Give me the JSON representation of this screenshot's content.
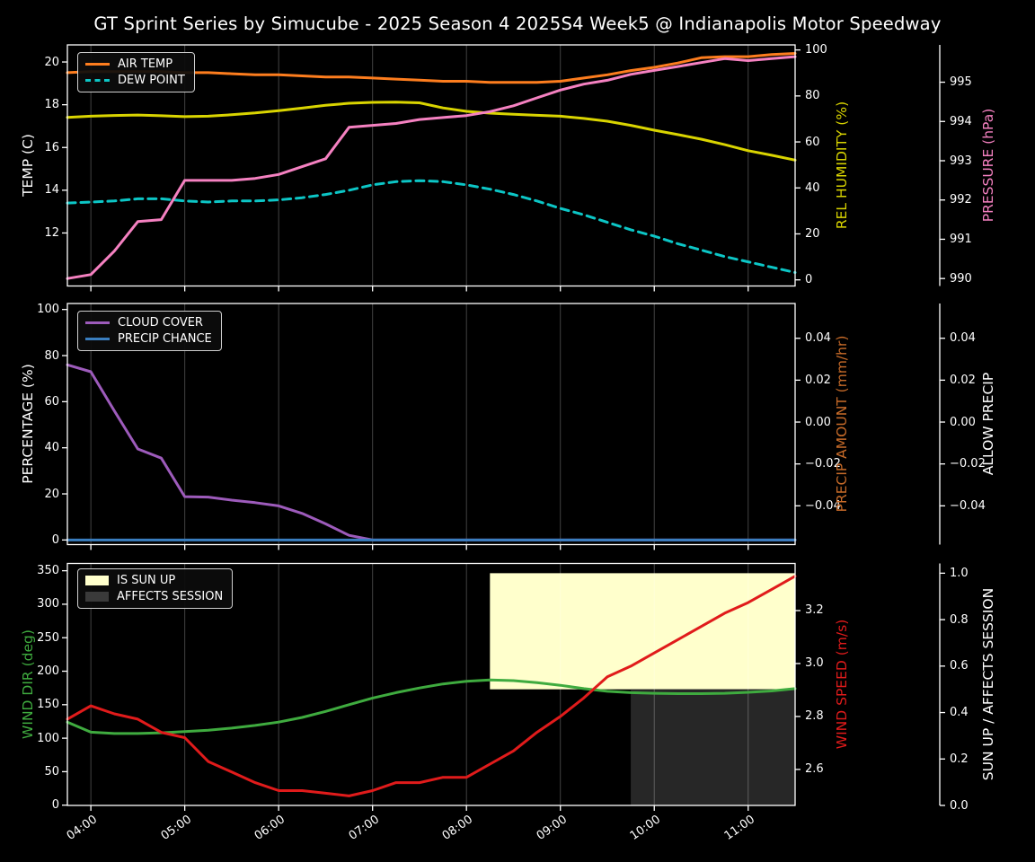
{
  "title": "GT Sprint Series by Simucube - 2025 Season 4 2025S4 Week5 @ Indianapolis Motor Speedway",
  "x_axis": {
    "start_hour": 3.75,
    "end_hour": 11.5,
    "tick_hours": [
      4,
      5,
      6,
      7,
      8,
      9,
      10,
      11
    ],
    "tick_labels": [
      "04:00",
      "05:00",
      "06:00",
      "07:00",
      "08:00",
      "09:00",
      "10:00",
      "11:00"
    ]
  },
  "chart_data": [
    {
      "type": "line",
      "panel": "temperature",
      "x_hours": [
        3.75,
        4.0,
        4.25,
        4.5,
        4.75,
        5.0,
        5.25,
        5.5,
        5.75,
        6.0,
        6.25,
        6.5,
        6.75,
        7.0,
        7.25,
        7.5,
        7.75,
        8.0,
        8.25,
        8.5,
        8.75,
        9.0,
        9.25,
        9.5,
        9.75,
        10.0,
        10.25,
        10.5,
        10.75,
        11.0,
        11.25,
        11.5
      ],
      "axes": {
        "left": {
          "label": "TEMP (C)",
          "color": "#ffffff",
          "range": [
            9.52,
            20.8
          ],
          "ticks": [
            {
              "v": 12,
              "t": "12"
            },
            {
              "v": 14,
              "t": "14"
            },
            {
              "v": 16,
              "t": "16"
            },
            {
              "v": 18,
              "t": "18"
            },
            {
              "v": 20,
              "t": "20"
            }
          ]
        },
        "right1": {
          "label": "REL HUMIDITY (%)",
          "color": "#d9d400",
          "range": [
            -2.66,
            102.2
          ],
          "ticks": [
            {
              "v": 0,
              "t": "0"
            },
            {
              "v": 20,
              "t": "20"
            },
            {
              "v": 40,
              "t": "40"
            },
            {
              "v": 60,
              "t": "60"
            },
            {
              "v": 80,
              "t": "80"
            },
            {
              "v": 100,
              "t": "100"
            }
          ]
        },
        "right2": {
          "label": "PRESSURE (hPa)",
          "color": "#f581c1",
          "range": [
            989.81,
            995.95
          ],
          "ticks": [
            {
              "v": 990,
              "t": "990"
            },
            {
              "v": 991,
              "t": "991"
            },
            {
              "v": 992,
              "t": "992"
            },
            {
              "v": 993,
              "t": "993"
            },
            {
              "v": 994,
              "t": "994"
            },
            {
              "v": 995,
              "t": "995"
            }
          ]
        }
      },
      "series": [
        {
          "name": "AIR TEMP",
          "axis": "left",
          "color": "#fd7d1e",
          "dash": false,
          "values": [
            19.5,
            19.55,
            19.55,
            19.55,
            19.55,
            19.5,
            19.5,
            19.45,
            19.4,
            19.4,
            19.35,
            19.3,
            19.3,
            19.25,
            19.2,
            19.15,
            19.1,
            19.1,
            19.05,
            19.05,
            19.05,
            19.1,
            19.25,
            19.4,
            19.6,
            19.75,
            19.95,
            20.2,
            20.25,
            20.25,
            20.35,
            20.4
          ]
        },
        {
          "name": "DEW POINT",
          "axis": "left",
          "color": "#0cc6c6",
          "dash": true,
          "values": [
            13.4,
            13.45,
            13.5,
            13.6,
            13.6,
            13.5,
            13.45,
            13.5,
            13.5,
            13.55,
            13.65,
            13.8,
            14.0,
            14.25,
            14.4,
            14.45,
            14.4,
            14.25,
            14.05,
            13.8,
            13.5,
            13.15,
            12.85,
            12.5,
            12.15,
            11.85,
            11.5,
            11.2,
            10.9,
            10.65,
            10.4,
            10.15
          ]
        },
        {
          "name": "REL HUMIDITY",
          "axis": "right1",
          "color": "#d9d400",
          "dash": false,
          "values": [
            70.7,
            71.2,
            71.5,
            71.7,
            71.4,
            71.0,
            71.2,
            71.8,
            72.6,
            73.6,
            74.7,
            75.9,
            76.8,
            77.2,
            77.3,
            77.0,
            74.8,
            73.3,
            72.5,
            72.0,
            71.6,
            71.2,
            70.2,
            69.0,
            67.2,
            65.1,
            63.2,
            61.2,
            58.8,
            56.2,
            54.2,
            52.1
          ]
        },
        {
          "name": "PRESSURE",
          "axis": "right2",
          "color": "#f581c1",
          "dash": false,
          "values": [
            990.0,
            990.1,
            990.7,
            991.45,
            991.5,
            992.5,
            992.5,
            992.5,
            992.55,
            992.65,
            992.85,
            993.05,
            993.85,
            993.9,
            993.95,
            994.05,
            994.1,
            994.15,
            994.25,
            994.4,
            994.6,
            994.8,
            994.95,
            995.05,
            995.2,
            995.3,
            995.4,
            995.5,
            995.6,
            995.55,
            995.6,
            995.65
          ]
        }
      ],
      "bands": [],
      "legend": [
        {
          "label": "AIR TEMP",
          "swatch": "line",
          "color": "#fd7d1e"
        },
        {
          "label": "DEW POINT",
          "swatch": "dash",
          "color": "#0cc6c6"
        }
      ]
    },
    {
      "type": "line",
      "panel": "percentage",
      "x_hours": [
        3.75,
        4.0,
        4.25,
        4.5,
        4.75,
        5.0,
        5.25,
        5.5,
        5.75,
        6.0,
        6.25,
        6.5,
        6.75,
        7.0,
        7.25,
        7.5,
        7.75,
        8.0,
        8.25,
        8.5,
        8.75,
        9.0,
        9.25,
        9.5,
        9.75,
        10.0,
        10.25,
        10.5,
        10.75,
        11.0,
        11.25,
        11.5
      ],
      "axes": {
        "left": {
          "label": "PERCENTAGE (%)",
          "color": "#ffffff",
          "range": [
            -2.0,
            102.6
          ],
          "ticks": [
            {
              "v": 0,
              "t": "0"
            },
            {
              "v": 20,
              "t": "20"
            },
            {
              "v": 40,
              "t": "40"
            },
            {
              "v": 60,
              "t": "60"
            },
            {
              "v": 80,
              "t": "80"
            },
            {
              "v": 100,
              "t": "100"
            }
          ]
        },
        "right1": {
          "label": "PRECIP AMOUNT (mm/hr)",
          "color": "#c76b29",
          "range": [
            -0.0585,
            0.0566
          ],
          "ticks": [
            {
              "v": 0.04,
              "t": "0.04"
            },
            {
              "v": 0.02,
              "t": "0.02"
            },
            {
              "v": 0.0,
              "t": "0.00"
            },
            {
              "v": -0.02,
              "t": "−0.02"
            },
            {
              "v": -0.04,
              "t": "−0.04"
            }
          ]
        },
        "right2": {
          "label": "ALLOW PRECIP",
          "color": "#ffffff",
          "range": [
            -0.0585,
            0.0566
          ],
          "ticks": [
            {
              "v": 0.04,
              "t": "0.04"
            },
            {
              "v": 0.02,
              "t": "0.02"
            },
            {
              "v": 0.0,
              "t": "0.00"
            },
            {
              "v": -0.02,
              "t": "−0.02"
            },
            {
              "v": -0.04,
              "t": "−0.04"
            }
          ]
        }
      },
      "series": [
        {
          "name": "CLOUD COVER",
          "axis": "left",
          "color": "#9d5bbb",
          "dash": false,
          "values": [
            76,
            73,
            56,
            39.5,
            35.5,
            18.8,
            18.6,
            17.3,
            16.2,
            14.8,
            11.5,
            7,
            2,
            0,
            0,
            0,
            0,
            0,
            0,
            0,
            0,
            0,
            0,
            0,
            0,
            0,
            0,
            0,
            0,
            0,
            0,
            0
          ]
        },
        {
          "name": "PRECIP CHANCE",
          "axis": "left",
          "color": "#3a7ebf",
          "dash": false,
          "values": [
            0,
            0,
            0,
            0,
            0,
            0,
            0,
            0,
            0,
            0,
            0,
            0,
            0,
            0,
            0,
            0,
            0,
            0,
            0,
            0,
            0,
            0,
            0,
            0,
            0,
            0,
            0,
            0,
            0,
            0,
            0,
            0
          ]
        }
      ],
      "bands": [],
      "legend": [
        {
          "label": "CLOUD COVER",
          "swatch": "line",
          "color": "#9d5bbb"
        },
        {
          "label": "PRECIP CHANCE",
          "swatch": "line",
          "color": "#3a7ebf"
        }
      ]
    },
    {
      "type": "line",
      "panel": "wind",
      "x_hours": [
        3.75,
        4.0,
        4.25,
        4.5,
        4.75,
        5.0,
        5.25,
        5.5,
        5.75,
        6.0,
        6.25,
        6.5,
        6.75,
        7.0,
        7.25,
        7.5,
        7.75,
        8.0,
        8.25,
        8.5,
        8.75,
        9.0,
        9.25,
        9.5,
        9.75,
        10.0,
        10.25,
        10.5,
        10.75,
        11.0,
        11.25,
        11.5
      ],
      "axes": {
        "left": {
          "label": "WIND DIR (deg)",
          "color": "#3fab3f",
          "range": [
            -0.4,
            360.9
          ],
          "ticks": [
            {
              "v": 0,
              "t": "0"
            },
            {
              "v": 50,
              "t": "50"
            },
            {
              "v": 100,
              "t": "100"
            },
            {
              "v": 150,
              "t": "150"
            },
            {
              "v": 200,
              "t": "200"
            },
            {
              "v": 250,
              "t": "250"
            },
            {
              "v": 300,
              "t": "300"
            },
            {
              "v": 350,
              "t": "350"
            }
          ]
        },
        "right1": {
          "label": "WIND SPEED (m/s)",
          "color": "#e01b1b",
          "range": [
            2.464,
            3.378
          ],
          "ticks": [
            {
              "v": 2.6,
              "t": "2.6"
            },
            {
              "v": 2.8,
              "t": "2.8"
            },
            {
              "v": 3.0,
              "t": "3.0"
            },
            {
              "v": 3.2,
              "t": "3.2"
            }
          ]
        },
        "right2": {
          "label": "SUN UP / AFFECTS SESSION",
          "color": "#ffffff",
          "range": [
            0.0,
            1.042
          ],
          "ticks": [
            {
              "v": 0.0,
              "t": "0.0"
            },
            {
              "v": 0.2,
              "t": "0.2"
            },
            {
              "v": 0.4,
              "t": "0.4"
            },
            {
              "v": 0.6,
              "t": "0.6"
            },
            {
              "v": 0.8,
              "t": "0.8"
            },
            {
              "v": 1.0,
              "t": "1.0"
            }
          ]
        }
      },
      "series": [
        {
          "name": "WIND DIR",
          "axis": "left",
          "color": "#3fab3f",
          "dash": false,
          "values": [
            124,
            109,
            107,
            107,
            108,
            110,
            112,
            115,
            119,
            124,
            131,
            140,
            150,
            160,
            168,
            175,
            181,
            185,
            187,
            186,
            183,
            179,
            174,
            170,
            168,
            167,
            166.5,
            166.5,
            167,
            168.5,
            170.5,
            174
          ]
        },
        {
          "name": "WIND SPEED",
          "axis": "right1",
          "color": "#e01b1b",
          "dash": false,
          "values": [
            2.79,
            2.84,
            2.81,
            2.79,
            2.74,
            2.72,
            2.63,
            2.59,
            2.55,
            2.52,
            2.52,
            2.51,
            2.5,
            2.52,
            2.55,
            2.55,
            2.57,
            2.57,
            2.62,
            2.67,
            2.74,
            2.8,
            2.87,
            2.95,
            2.99,
            3.04,
            3.09,
            3.14,
            3.19,
            3.23,
            3.28,
            3.33
          ]
        }
      ],
      "bands": [
        {
          "name": "IS SUN UP",
          "axis": "right2",
          "color": "#ffffcc",
          "x_from": 8.25,
          "x_to": 11.5,
          "v_from": 0.5,
          "v_to": 1.0
        },
        {
          "name": "AFFECTS SESSION",
          "axis": "right2",
          "color": "#272727",
          "x_from": 9.75,
          "x_to": 11.5,
          "v_from": 0.0,
          "v_to": 0.5
        }
      ],
      "legend": [
        {
          "label": "IS SUN UP",
          "swatch": "patch",
          "color": "#ffffcc"
        },
        {
          "label": "AFFECTS SESSION",
          "swatch": "patch",
          "color": "#3a3a3a"
        }
      ],
      "show_x_labels": true
    }
  ]
}
